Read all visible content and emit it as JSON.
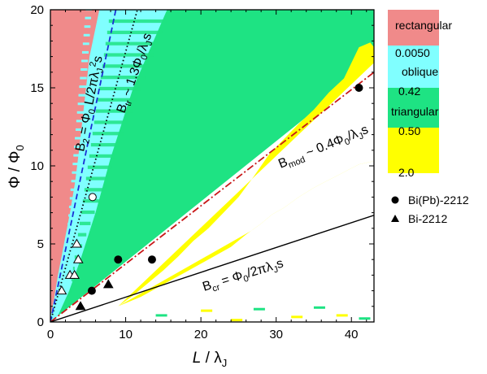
{
  "chart_data": {
    "type": "heatmap",
    "xlabel": "L / λJ",
    "ylabel": "Φ / Φ0",
    "xlim": [
      0,
      43
    ],
    "ylim": [
      0,
      20
    ],
    "xticks": [
      0,
      10,
      20,
      30,
      40
    ],
    "yticks": [
      0,
      5,
      10,
      15,
      20
    ],
    "tick_labels": {
      "x": [
        "0",
        "10",
        "20",
        "30",
        "40"
      ],
      "y": [
        "0",
        "5",
        "10",
        "15",
        "20"
      ]
    },
    "colors": {
      "rectangular": "#f08a8a",
      "oblique": "#80ffff",
      "triangular": "#1ee383",
      "yellow": "#ffff00",
      "white": "#ffffff"
    },
    "colorbar": {
      "entries": [
        {
          "label": "rectangular",
          "color": "#f08a8a"
        },
        {
          "label": "oblique",
          "color": "#80ffff"
        },
        {
          "label": "triangular",
          "color": "#1ee383"
        },
        {
          "label": "",
          "color": "#ffff00"
        }
      ],
      "boundary_labels": [
        "0.0050",
        "0.42",
        "0.50",
        "2.0"
      ]
    },
    "lines": [
      {
        "id": "b2",
        "style": "dotted",
        "color": "#000000",
        "slope": 1.73,
        "label_parts": [
          "B",
          "2",
          " = Φ",
          "0",
          " L/2πλ",
          "J",
          "²",
          "s"
        ]
      },
      {
        "id": "btr",
        "style": "dashed",
        "color": "#1a2fd6",
        "slope": 2.3,
        "label_parts": [
          "B",
          "tr",
          " ~ 1.3Φ",
          "0",
          "/λ",
          "J",
          "s"
        ]
      },
      {
        "id": "bmod",
        "style": "dashdot",
        "color": "#c81818",
        "slope": 0.372,
        "label_parts": [
          "B",
          "mod",
          " ~ 0.4Φ",
          "0",
          "/λ",
          "J",
          "s"
        ]
      },
      {
        "id": "bcr",
        "style": "solid",
        "color": "#000000",
        "slope": 0.159,
        "label_parts": [
          "B",
          "cr",
          " = Φ",
          "0",
          "/2πλ",
          "J",
          "s"
        ]
      }
    ],
    "series": [
      {
        "name": "Bi(Pb)-2212",
        "marker": "circle",
        "points": [
          [
            5.5,
            2.0
          ],
          [
            9.0,
            4.0
          ],
          [
            13.5,
            4.0
          ],
          [
            41.0,
            15.0
          ]
        ]
      },
      {
        "name": "Bi-2212",
        "marker": "triangle",
        "points": [
          [
            4.0,
            1.0
          ],
          [
            7.7,
            2.4
          ]
        ]
      },
      {
        "name": "",
        "marker": "open-circle",
        "points": [
          [
            5.6,
            8.0
          ]
        ]
      },
      {
        "name": "",
        "marker": "open-triangle",
        "points": [
          [
            1.5,
            2.0
          ],
          [
            2.6,
            3.0
          ],
          [
            3.2,
            3.0
          ],
          [
            3.7,
            4.0
          ],
          [
            3.5,
            5.0
          ]
        ]
      }
    ],
    "legend_placement": "right"
  }
}
